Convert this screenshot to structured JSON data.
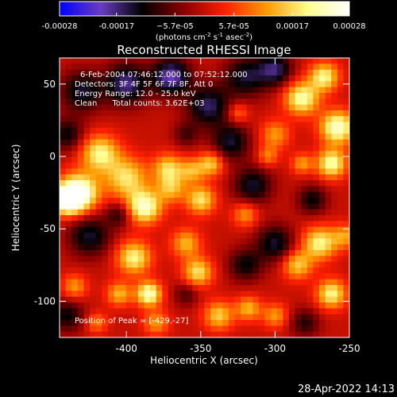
{
  "colors": {
    "background": "#000000",
    "foreground": "#ffffff",
    "scale": [
      "#0000ff",
      "#6a3cc0",
      "#000000",
      "#8a0000",
      "#ff2000",
      "#ff9a00",
      "#ffff90",
      "#ffffff"
    ]
  },
  "chart_data": {
    "type": "heatmap",
    "title": "Reconstructed RHESSI Image",
    "xlabel": "Heliocentric X (arcsec)",
    "ylabel": "Heliocentric Y (arcsec)",
    "xlim": [
      -445,
      -250
    ],
    "ylim": [
      -125,
      68
    ],
    "xticks": [
      -400,
      -350,
      -300,
      -250
    ],
    "xtick_labels": [
      "-400",
      "-350",
      "-300",
      "-250"
    ],
    "yticks": [
      -100,
      -50,
      0,
      50
    ],
    "ytick_labels": [
      "-100",
      "-50",
      "0",
      "50"
    ],
    "colorbar": {
      "range": [
        -0.00028,
        0.00028
      ],
      "ticks": [
        -0.00028,
        -0.00017,
        -5.7e-05,
        5.7e-05,
        0.00017,
        0.00028
      ],
      "tick_labels": [
        "-0.00028",
        "-0.00017",
        "−5.7e-05",
        "5.7e-05",
        "0.00017",
        "0.00028"
      ],
      "units_text": "(photons cm",
      "units_exp1": "-2",
      "units_mid": " s",
      "units_exp2": "-1",
      "units_end": " asec",
      "units_exp3": "-2",
      "units_close": ")"
    },
    "annotations": [
      "6-Feb-2004 07:46:12.000 to 07:52:12.000",
      "Detectors: 3F 4F 5F 6F 7F 8F, Att 0",
      "Energy Range: 12.0 - 25.0 keV",
      "Clean      Total counts: 3.62E+03"
    ],
    "peak_label": "Position of Peak = [-429,-27]",
    "sources": [
      {
        "x": -432,
        "y": -25,
        "v": 0.00028,
        "s": 9
      },
      {
        "x": -440,
        "y": -30,
        "v": 0.00026,
        "s": 7
      },
      {
        "x": -418,
        "y": 2,
        "v": 0.0002,
        "s": 9
      },
      {
        "x": -400,
        "y": -15,
        "v": 0.00018,
        "s": 10
      },
      {
        "x": -388,
        "y": -35,
        "v": 0.00024,
        "s": 8
      },
      {
        "x": -370,
        "y": -22,
        "v": 0.00014,
        "s": 7
      },
      {
        "x": -372,
        "y": -8,
        "v": 0.00016,
        "s": 7
      },
      {
        "x": -350,
        "y": -30,
        "v": 0.00018,
        "s": 7
      },
      {
        "x": -356,
        "y": -10,
        "v": 0.00013,
        "s": 6
      },
      {
        "x": -343,
        "y": -5,
        "v": 0.00016,
        "s": 6
      },
      {
        "x": -320,
        "y": -40,
        "v": 0.00012,
        "s": 6
      },
      {
        "x": -300,
        "y": 15,
        "v": 0.00012,
        "s": 7
      },
      {
        "x": -305,
        "y": 0,
        "v": 0.0001,
        "s": 5
      },
      {
        "x": -282,
        "y": 40,
        "v": 0.00022,
        "s": 8
      },
      {
        "x": -267,
        "y": 55,
        "v": 0.0002,
        "s": 7
      },
      {
        "x": -258,
        "y": 20,
        "v": 0.00025,
        "s": 8
      },
      {
        "x": -262,
        "y": -5,
        "v": 0.00022,
        "s": 7
      },
      {
        "x": -282,
        "y": -5,
        "v": 0.00012,
        "s": 5
      },
      {
        "x": -270,
        "y": -60,
        "v": 0.0002,
        "s": 8
      },
      {
        "x": -285,
        "y": -75,
        "v": 0.00016,
        "s": 7
      },
      {
        "x": -262,
        "y": -95,
        "v": 0.0002,
        "s": 7
      },
      {
        "x": -253,
        "y": -55,
        "v": 0.00012,
        "s": 6
      },
      {
        "x": -395,
        "y": -70,
        "v": 0.0002,
        "s": 8
      },
      {
        "x": -385,
        "y": -95,
        "v": 0.00024,
        "s": 6
      },
      {
        "x": -405,
        "y": -95,
        "v": 0.00014,
        "s": 6
      },
      {
        "x": -360,
        "y": -60,
        "v": 0.00014,
        "s": 7
      },
      {
        "x": -352,
        "y": -80,
        "v": 0.00018,
        "s": 7
      },
      {
        "x": -338,
        "y": -110,
        "v": 0.00016,
        "s": 7
      },
      {
        "x": -318,
        "y": -105,
        "v": 0.00014,
        "s": 6
      },
      {
        "x": -300,
        "y": -110,
        "v": 0.00012,
        "s": 6
      },
      {
        "x": -435,
        "y": -90,
        "v": 0.00012,
        "s": 6
      },
      {
        "x": -420,
        "y": -115,
        "v": 0.0001,
        "s": 5
      },
      {
        "x": -325,
        "y": 30,
        "v": 0.0001,
        "s": 5
      },
      {
        "x": -380,
        "y": -115,
        "v": 0.00012,
        "s": 6
      },
      {
        "x": -400,
        "y": 50,
        "v": -0.00018,
        "s": 10
      },
      {
        "x": -370,
        "y": 55,
        "v": -0.0002,
        "s": 9
      },
      {
        "x": -345,
        "y": 35,
        "v": -0.00016,
        "s": 10
      },
      {
        "x": -320,
        "y": 55,
        "v": -0.00014,
        "s": 10
      },
      {
        "x": -300,
        "y": 60,
        "v": -0.00016,
        "s": 8
      },
      {
        "x": -430,
        "y": 45,
        "v": -0.00014,
        "s": 10
      },
      {
        "x": -440,
        "y": 15,
        "v": -0.00012,
        "s": 8
      },
      {
        "x": -330,
        "y": 10,
        "v": -0.00014,
        "s": 9
      },
      {
        "x": -315,
        "y": -20,
        "v": -0.00014,
        "s": 9
      },
      {
        "x": -300,
        "y": -60,
        "v": -0.00014,
        "s": 9
      },
      {
        "x": -320,
        "y": -75,
        "v": -0.00012,
        "s": 8
      },
      {
        "x": -425,
        "y": -55,
        "v": -0.00014,
        "s": 10
      },
      {
        "x": -440,
        "y": -110,
        "v": -0.00012,
        "s": 8
      },
      {
        "x": -405,
        "y": -40,
        "v": -0.0001,
        "s": 6
      },
      {
        "x": -275,
        "y": -30,
        "v": -0.00012,
        "s": 7
      },
      {
        "x": -280,
        "y": -115,
        "v": -0.0001,
        "s": 7
      },
      {
        "x": -360,
        "y": -95,
        "v": -8e-05,
        "s": 6
      },
      {
        "x": -360,
        "y": 15,
        "v": -8e-05,
        "s": 6
      }
    ]
  },
  "footer": {
    "date": "28-Apr-2022 14:13"
  }
}
